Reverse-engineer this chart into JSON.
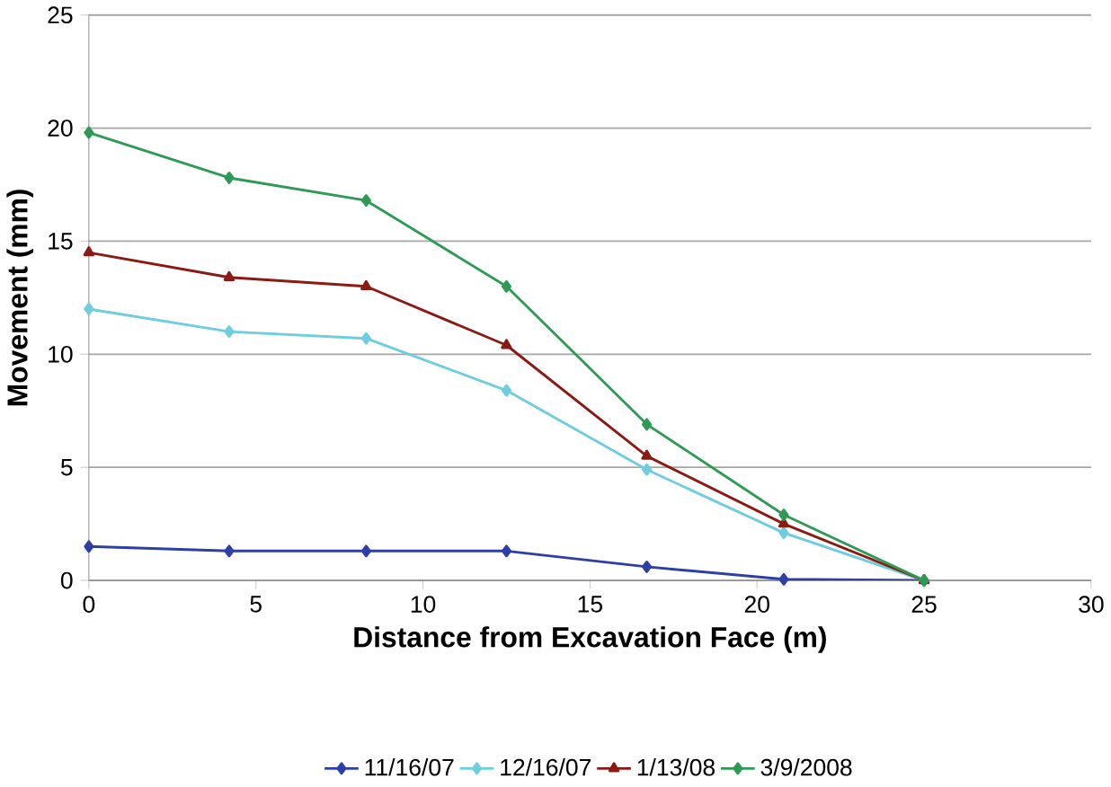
{
  "chart_data": {
    "type": "line",
    "xlabel": "Distance from Excavation Face (m)",
    "ylabel": "Movement (mm)",
    "x": [
      0,
      4.2,
      8.3,
      12.5,
      16.7,
      20.8,
      25
    ],
    "xlim": [
      0,
      30
    ],
    "xticks": [
      0,
      5,
      10,
      15,
      20,
      25,
      30
    ],
    "ylim": [
      0,
      25
    ],
    "yticks": [
      0,
      5,
      10,
      15,
      20,
      25
    ],
    "grid": "y",
    "legend": "bottom",
    "marker": "diamond",
    "series": [
      {
        "name": "11/16/07",
        "color": "#2e3fa8",
        "values": [
          1.5,
          1.3,
          1.3,
          1.3,
          0.6,
          0.05,
          0
        ]
      },
      {
        "name": "12/16/07",
        "color": "#6fcde0",
        "values": [
          12.0,
          11.0,
          10.7,
          8.4,
          4.9,
          2.1,
          0
        ]
      },
      {
        "name": "1/13/08",
        "color": "#8b1a12",
        "marker": "triangle",
        "values": [
          14.5,
          13.4,
          13.0,
          10.4,
          5.5,
          2.5,
          0
        ]
      },
      {
        "name": "3/9/2008",
        "color": "#2e9a55",
        "values": [
          19.8,
          17.8,
          16.8,
          13.0,
          6.9,
          2.9,
          0
        ]
      }
    ]
  }
}
